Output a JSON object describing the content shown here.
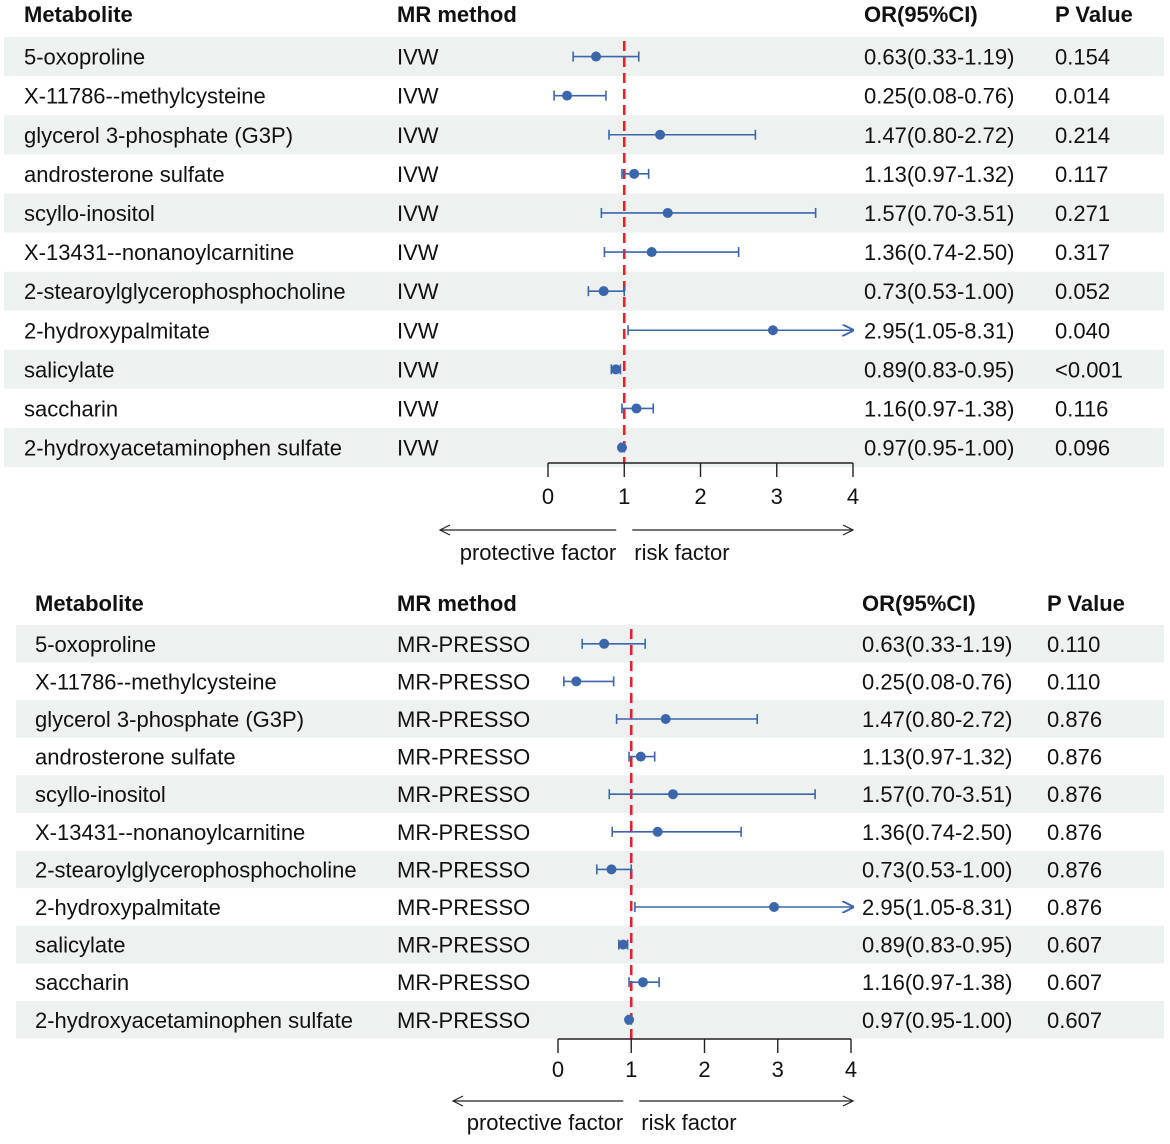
{
  "colors": {
    "band": "#edf1ef",
    "marker": "#3b66ab",
    "refline": "#e8202a",
    "axis": "#222222"
  },
  "chart_data": [
    {
      "type": "forest",
      "headers": {
        "metabolite": "Metabolite",
        "method": "MR method",
        "or": "OR(95%CI)",
        "p": "P Value"
      },
      "xlim": [
        0,
        4
      ],
      "xticks": [
        "0",
        "1",
        "2",
        "3",
        "4"
      ],
      "ref_value": 1,
      "direction_labels": {
        "left": "protective factor",
        "right": "risk factor"
      },
      "rows": [
        {
          "metabolite": "5-oxoproline",
          "method": "IVW",
          "or": 0.63,
          "lo": 0.33,
          "hi": 1.19,
          "or_text": "0.63(0.33-1.19)",
          "p": "0.154"
        },
        {
          "metabolite": "X-11786--methylcysteine",
          "method": "IVW",
          "or": 0.25,
          "lo": 0.08,
          "hi": 0.76,
          "or_text": "0.25(0.08-0.76)",
          "p": "0.014"
        },
        {
          "metabolite": "glycerol 3-phosphate (G3P)",
          "method": "IVW",
          "or": 1.47,
          "lo": 0.8,
          "hi": 2.72,
          "or_text": "1.47(0.80-2.72)",
          "p": "0.214"
        },
        {
          "metabolite": "androsterone sulfate",
          "method": "IVW",
          "or": 1.13,
          "lo": 0.97,
          "hi": 1.32,
          "or_text": "1.13(0.97-1.32)",
          "p": "0.117"
        },
        {
          "metabolite": "scyllo-inositol",
          "method": "IVW",
          "or": 1.57,
          "lo": 0.7,
          "hi": 3.51,
          "or_text": "1.57(0.70-3.51)",
          "p": "0.271"
        },
        {
          "metabolite": "X-13431--nonanoylcarnitine",
          "method": "IVW",
          "or": 1.36,
          "lo": 0.74,
          "hi": 2.5,
          "or_text": "1.36(0.74-2.50)",
          "p": "0.317"
        },
        {
          "metabolite": "2-stearoylglycerophosphocholine",
          "method": "IVW",
          "or": 0.73,
          "lo": 0.53,
          "hi": 1.0,
          "or_text": "0.73(0.53-1.00)",
          "p": "0.052"
        },
        {
          "metabolite": "2-hydroxypalmitate",
          "method": "IVW",
          "or": 2.95,
          "lo": 1.05,
          "hi": 8.31,
          "or_text": "2.95(1.05-8.31)",
          "p": "0.040"
        },
        {
          "metabolite": "salicylate",
          "method": "IVW",
          "or": 0.89,
          "lo": 0.83,
          "hi": 0.95,
          "or_text": "0.89(0.83-0.95)",
          "p": "<0.001"
        },
        {
          "metabolite": "saccharin",
          "method": "IVW",
          "or": 1.16,
          "lo": 0.97,
          "hi": 1.38,
          "or_text": "1.16(0.97-1.38)",
          "p": "0.116"
        },
        {
          "metabolite": "2-hydroxyacetaminophen sulfate",
          "method": "IVW",
          "or": 0.97,
          "lo": 0.95,
          "hi": 1.0,
          "or_text": "0.97(0.95-1.00)",
          "p": "0.096"
        }
      ]
    },
    {
      "type": "forest",
      "headers": {
        "metabolite": "Metabolite",
        "method": "MR method",
        "or": "OR(95%CI)",
        "p": "P Value"
      },
      "xlim": [
        0,
        4
      ],
      "xticks": [
        "0",
        "1",
        "2",
        "3",
        "4"
      ],
      "ref_value": 1,
      "direction_labels": {
        "left": "protective factor",
        "right": "risk factor"
      },
      "rows": [
        {
          "metabolite": "5-oxoproline",
          "method": "MR-PRESSO",
          "or": 0.63,
          "lo": 0.33,
          "hi": 1.19,
          "or_text": "0.63(0.33-1.19)",
          "p": "0.110"
        },
        {
          "metabolite": "X-11786--methylcysteine",
          "method": "MR-PRESSO",
          "or": 0.25,
          "lo": 0.08,
          "hi": 0.76,
          "or_text": "0.25(0.08-0.76)",
          "p": "0.110"
        },
        {
          "metabolite": "glycerol 3-phosphate (G3P)",
          "method": "MR-PRESSO",
          "or": 1.47,
          "lo": 0.8,
          "hi": 2.72,
          "or_text": "1.47(0.80-2.72)",
          "p": "0.876"
        },
        {
          "metabolite": "androsterone sulfate",
          "method": "MR-PRESSO",
          "or": 1.13,
          "lo": 0.97,
          "hi": 1.32,
          "or_text": "1.13(0.97-1.32)",
          "p": "0.876"
        },
        {
          "metabolite": "scyllo-inositol",
          "method": "MR-PRESSO",
          "or": 1.57,
          "lo": 0.7,
          "hi": 3.51,
          "or_text": "1.57(0.70-3.51)",
          "p": "0.876"
        },
        {
          "metabolite": "X-13431--nonanoylcarnitine",
          "method": "MR-PRESSO",
          "or": 1.36,
          "lo": 0.74,
          "hi": 2.5,
          "or_text": "1.36(0.74-2.50)",
          "p": "0.876"
        },
        {
          "metabolite": "2-stearoylglycerophosphocholine",
          "method": "MR-PRESSO",
          "or": 0.73,
          "lo": 0.53,
          "hi": 1.0,
          "or_text": "0.73(0.53-1.00)",
          "p": "0.876"
        },
        {
          "metabolite": "2-hydroxypalmitate",
          "method": "MR-PRESSO",
          "or": 2.95,
          "lo": 1.05,
          "hi": 8.31,
          "or_text": "2.95(1.05-8.31)",
          "p": "0.876"
        },
        {
          "metabolite": "salicylate",
          "method": "MR-PRESSO",
          "or": 0.89,
          "lo": 0.83,
          "hi": 0.95,
          "or_text": "0.89(0.83-0.95)",
          "p": "0.607"
        },
        {
          "metabolite": "saccharin",
          "method": "MR-PRESSO",
          "or": 1.16,
          "lo": 0.97,
          "hi": 1.38,
          "or_text": "1.16(0.97-1.38)",
          "p": "0.607"
        },
        {
          "metabolite": "2-hydroxyacetaminophen sulfate",
          "method": "MR-PRESSO",
          "or": 0.97,
          "lo": 0.95,
          "hi": 1.0,
          "or_text": "0.97(0.95-1.00)",
          "p": "0.607"
        }
      ]
    }
  ]
}
